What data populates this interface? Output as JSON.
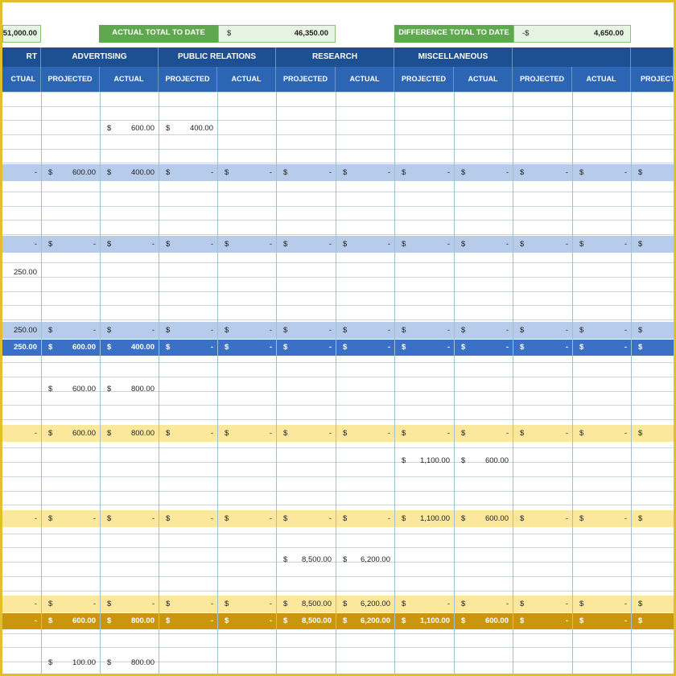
{
  "summary": {
    "left_total_value": "51,000.00",
    "actual_label": "ACTUAL TOTAL TO DATE",
    "actual_currency": "$",
    "actual_value": "46,350.00",
    "difference_label": "DIFFERENCE TOTAL TO DATE",
    "difference_currency": "-$",
    "difference_value": "4,650.00"
  },
  "categories": [
    "RT",
    "ADVERTISING",
    "PUBLIC RELATIONS",
    "RESEARCH",
    "MISCELLANEOUS",
    "",
    ""
  ],
  "subheaders": [
    "CTUAL",
    "PROJECTED",
    "ACTUAL",
    "PROJECTED",
    "ACTUAL",
    "PROJECTED",
    "ACTUAL",
    "PROJECTED",
    "ACTUAL",
    "PROJECTED",
    "ACTUAL",
    "PROJECTI"
  ],
  "colors": {
    "frame": "#e0bf2a",
    "header_dark": "#1d4f93",
    "header_mid": "#2c65b3",
    "band_light_blue": "#b7cbea",
    "band_blue": "#3a70c6",
    "band_yellow": "#fbe89c",
    "band_gold": "#c9970f",
    "summary_green": "#5ea94d"
  },
  "rows": [
    {
      "top": 148,
      "type": "data",
      "cells": [
        null,
        [
          "$",
          "600.00"
        ],
        [
          "$",
          "400.00"
        ],
        null,
        null,
        null,
        null,
        null,
        null,
        null,
        null,
        null
      ]
    },
    {
      "top": 201,
      "type": "light_blue",
      "first": "-",
      "cells": [
        [
          "$",
          "600.00"
        ],
        [
          "$",
          "400.00"
        ],
        [
          "$",
          "-"
        ],
        [
          "$",
          "-"
        ],
        [
          "$",
          "-"
        ],
        [
          "$",
          "-"
        ],
        [
          "$",
          "-"
        ],
        [
          "$",
          "-"
        ],
        [
          "$",
          "-"
        ],
        [
          "$",
          "-"
        ],
        [
          "$",
          ""
        ]
      ]
    },
    {
      "top": 290,
      "type": "light_blue",
      "first": "-",
      "cells": [
        [
          "$",
          "-"
        ],
        [
          "$",
          "-"
        ],
        [
          "$",
          "-"
        ],
        [
          "$",
          "-"
        ],
        [
          "$",
          "-"
        ],
        [
          "$",
          "-"
        ],
        [
          "$",
          "-"
        ],
        [
          "$",
          "-"
        ],
        [
          "$",
          "-"
        ],
        [
          "$",
          "-"
        ],
        [
          "$",
          ""
        ]
      ]
    },
    {
      "top": 327,
      "type": "data",
      "first": "250.00",
      "cells": [
        null,
        null,
        null,
        null,
        null,
        null,
        null,
        null,
        null,
        null,
        null
      ]
    },
    {
      "top": 397,
      "type": "light_blue",
      "first": "250.00",
      "cells": [
        [
          "$",
          "-"
        ],
        [
          "$",
          "-"
        ],
        [
          "$",
          "-"
        ],
        [
          "$",
          "-"
        ],
        [
          "$",
          "-"
        ],
        [
          "$",
          "-"
        ],
        [
          "$",
          "-"
        ],
        [
          "$",
          "-"
        ],
        [
          "$",
          "-"
        ],
        [
          "$",
          "-"
        ],
        [
          "$",
          ""
        ]
      ]
    },
    {
      "top": 419,
      "type": "blue",
      "first": "250.00",
      "cells": [
        [
          "$",
          "600.00"
        ],
        [
          "$",
          "400.00"
        ],
        [
          "$",
          "-"
        ],
        [
          "$",
          "-"
        ],
        [
          "$",
          "-"
        ],
        [
          "$",
          "-"
        ],
        [
          "$",
          "-"
        ],
        [
          "$",
          "-"
        ],
        [
          "$",
          "-"
        ],
        [
          "$",
          "-"
        ],
        [
          "$",
          ""
        ]
      ]
    },
    {
      "top": 472,
      "type": "data",
      "cells": [
        [
          "$",
          "600.00"
        ],
        [
          "$",
          "800.00"
        ],
        null,
        null,
        null,
        null,
        null,
        null,
        null,
        null,
        null
      ]
    },
    {
      "top": 525,
      "type": "yellow",
      "first": "-",
      "cells": [
        [
          "$",
          "600.00"
        ],
        [
          "$",
          "800.00"
        ],
        [
          "$",
          "-"
        ],
        [
          "$",
          "-"
        ],
        [
          "$",
          "-"
        ],
        [
          "$",
          "-"
        ],
        [
          "$",
          "-"
        ],
        [
          "$",
          "-"
        ],
        [
          "$",
          "-"
        ],
        [
          "$",
          "-"
        ],
        [
          "$",
          ""
        ]
      ]
    },
    {
      "top": 561,
      "type": "data",
      "cells": [
        null,
        null,
        null,
        null,
        null,
        null,
        [
          "$",
          "1,100.00"
        ],
        [
          "$",
          "600.00"
        ],
        null,
        null,
        null
      ]
    },
    {
      "top": 631,
      "type": "yellow",
      "first": "-",
      "cells": [
        [
          "$",
          "-"
        ],
        [
          "$",
          "-"
        ],
        [
          "$",
          "-"
        ],
        [
          "$",
          "-"
        ],
        [
          "$",
          "-"
        ],
        [
          "$",
          "-"
        ],
        [
          "$",
          "1,100.00"
        ],
        [
          "$",
          "600.00"
        ],
        [
          "$",
          "-"
        ],
        [
          "$",
          "-"
        ],
        [
          "$",
          ""
        ]
      ]
    },
    {
      "top": 684,
      "type": "data",
      "cells": [
        null,
        null,
        null,
        null,
        [
          "$",
          "8,500.00"
        ],
        [
          "$",
          "6,200.00"
        ],
        null,
        null,
        null,
        null,
        null
      ]
    },
    {
      "top": 737,
      "type": "yellow",
      "first": "-",
      "cells": [
        [
          "$",
          "-"
        ],
        [
          "$",
          "-"
        ],
        [
          "$",
          "-"
        ],
        [
          "$",
          "-"
        ],
        [
          "$",
          "8,500.00"
        ],
        [
          "$",
          "6,200.00"
        ],
        [
          "$",
          "-"
        ],
        [
          "$",
          "-"
        ],
        [
          "$",
          "-"
        ],
        [
          "$",
          "-"
        ],
        [
          "$",
          ""
        ]
      ]
    },
    {
      "top": 759,
      "type": "gold",
      "first": "-",
      "cells": [
        [
          "$",
          "600.00"
        ],
        [
          "$",
          "800.00"
        ],
        [
          "$",
          "-"
        ],
        [
          "$",
          "-"
        ],
        [
          "$",
          "8,500.00"
        ],
        [
          "$",
          "6,200.00"
        ],
        [
          "$",
          "1,100.00"
        ],
        [
          "$",
          "600.00"
        ],
        [
          "$",
          "-"
        ],
        [
          "$",
          "-"
        ],
        [
          "$",
          ""
        ]
      ]
    },
    {
      "top": 812,
      "type": "data",
      "cells": [
        [
          "$",
          "100.00"
        ],
        [
          "$",
          "800.00"
        ],
        null,
        null,
        null,
        null,
        null,
        null,
        null,
        null,
        null
      ]
    }
  ]
}
